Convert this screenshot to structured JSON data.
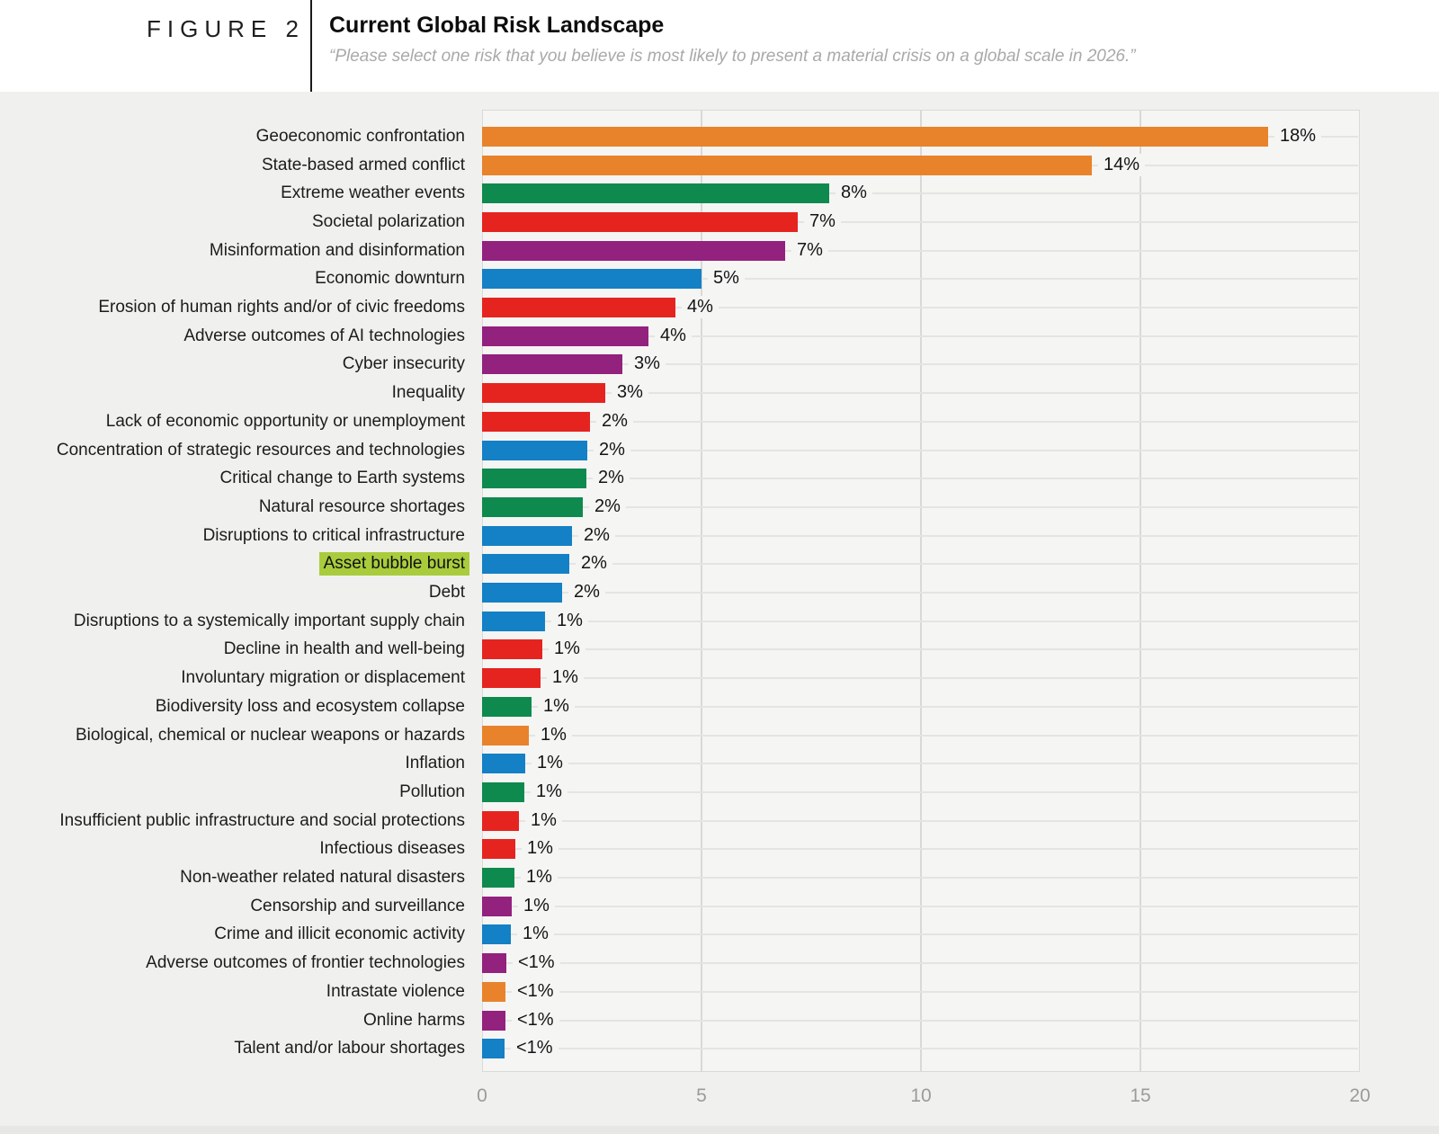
{
  "header": {
    "figure_label": "FIGURE 2",
    "title": "Current Global Risk Landscape",
    "subtitle": "“Please select one risk that you believe is most likely to present a material crisis on a global scale in 2026.”"
  },
  "chart_data": {
    "type": "bar",
    "orientation": "horizontal",
    "title": "Current Global Risk Landscape",
    "xlim": [
      0,
      20
    ],
    "x_ticks": [
      0,
      5,
      10,
      15,
      20
    ],
    "grid": true,
    "legend": false,
    "palette": {
      "orange": "#e8832b",
      "green": "#0f8a4e",
      "red": "#e52420",
      "purple": "#93217e",
      "blue": "#1480c5"
    },
    "highlighted_category": "Asset bubble burst",
    "highlight_color": "#a9cc3d",
    "rows": [
      {
        "label": "Geoeconomic confrontation",
        "value": 17.9,
        "value_label": "18%",
        "color": "orange"
      },
      {
        "label": "State-based armed conflict",
        "value": 13.9,
        "value_label": "14%",
        "color": "orange"
      },
      {
        "label": "Extreme weather events",
        "value": 7.9,
        "value_label": "8%",
        "color": "green"
      },
      {
        "label": "Societal polarization",
        "value": 7.2,
        "value_label": "7%",
        "color": "red"
      },
      {
        "label": "Misinformation and disinformation",
        "value": 6.9,
        "value_label": "7%",
        "color": "purple"
      },
      {
        "label": "Economic downturn",
        "value": 5.0,
        "value_label": "5%",
        "color": "blue"
      },
      {
        "label": "Erosion of human rights and/or of civic freedoms",
        "value": 4.4,
        "value_label": "4%",
        "color": "red"
      },
      {
        "label": "Adverse outcomes of AI technologies",
        "value": 3.8,
        "value_label": "4%",
        "color": "purple"
      },
      {
        "label": "Cyber insecurity",
        "value": 3.2,
        "value_label": "3%",
        "color": "purple"
      },
      {
        "label": "Inequality",
        "value": 2.8,
        "value_label": "3%",
        "color": "red"
      },
      {
        "label": "Lack of economic opportunity or unemployment",
        "value": 2.45,
        "value_label": "2%",
        "color": "red"
      },
      {
        "label": "Concentration of strategic resources and technologies",
        "value": 2.4,
        "value_label": "2%",
        "color": "blue"
      },
      {
        "label": "Critical change to Earth systems",
        "value": 2.37,
        "value_label": "2%",
        "color": "green"
      },
      {
        "label": "Natural resource shortages",
        "value": 2.3,
        "value_label": "2%",
        "color": "green"
      },
      {
        "label": "Disruptions to critical infrastructure",
        "value": 2.05,
        "value_label": "2%",
        "color": "blue"
      },
      {
        "label": "Asset bubble burst",
        "value": 1.98,
        "value_label": "2%",
        "color": "blue"
      },
      {
        "label": "Debt",
        "value": 1.83,
        "value_label": "2%",
        "color": "blue"
      },
      {
        "label": "Disruptions to a systemically important supply chain",
        "value": 1.43,
        "value_label": "1%",
        "color": "blue"
      },
      {
        "label": "Decline in health and well-being",
        "value": 1.37,
        "value_label": "1%",
        "color": "red"
      },
      {
        "label": "Involuntary migration or displacement",
        "value": 1.34,
        "value_label": "1%",
        "color": "red"
      },
      {
        "label": "Biodiversity loss and ecosystem collapse",
        "value": 1.12,
        "value_label": "1%",
        "color": "green"
      },
      {
        "label": "Biological, chemical or nuclear weapons or hazards",
        "value": 1.06,
        "value_label": "1%",
        "color": "orange"
      },
      {
        "label": "Inflation",
        "value": 0.99,
        "value_label": "1%",
        "color": "blue"
      },
      {
        "label": "Pollution",
        "value": 0.96,
        "value_label": "1%",
        "color": "green"
      },
      {
        "label": "Insufficient public infrastructure and social protections",
        "value": 0.84,
        "value_label": "1%",
        "color": "red"
      },
      {
        "label": "Infectious diseases",
        "value": 0.76,
        "value_label": "1%",
        "color": "red"
      },
      {
        "label": "Non-weather related natural disasters",
        "value": 0.73,
        "value_label": "1%",
        "color": "green"
      },
      {
        "label": "Censorship and surveillance",
        "value": 0.68,
        "value_label": "1%",
        "color": "purple"
      },
      {
        "label": "Crime and illicit economic activity",
        "value": 0.66,
        "value_label": "1%",
        "color": "blue"
      },
      {
        "label": "Adverse outcomes of frontier technologies",
        "value": 0.56,
        "value_label": "<1%",
        "color": "purple"
      },
      {
        "label": "Intrastate violence",
        "value": 0.54,
        "value_label": "<1%",
        "color": "orange"
      },
      {
        "label": "Online harms",
        "value": 0.53,
        "value_label": "<1%",
        "color": "purple"
      },
      {
        "label": "Talent and/or labour shortages",
        "value": 0.52,
        "value_label": "<1%",
        "color": "blue"
      }
    ]
  }
}
